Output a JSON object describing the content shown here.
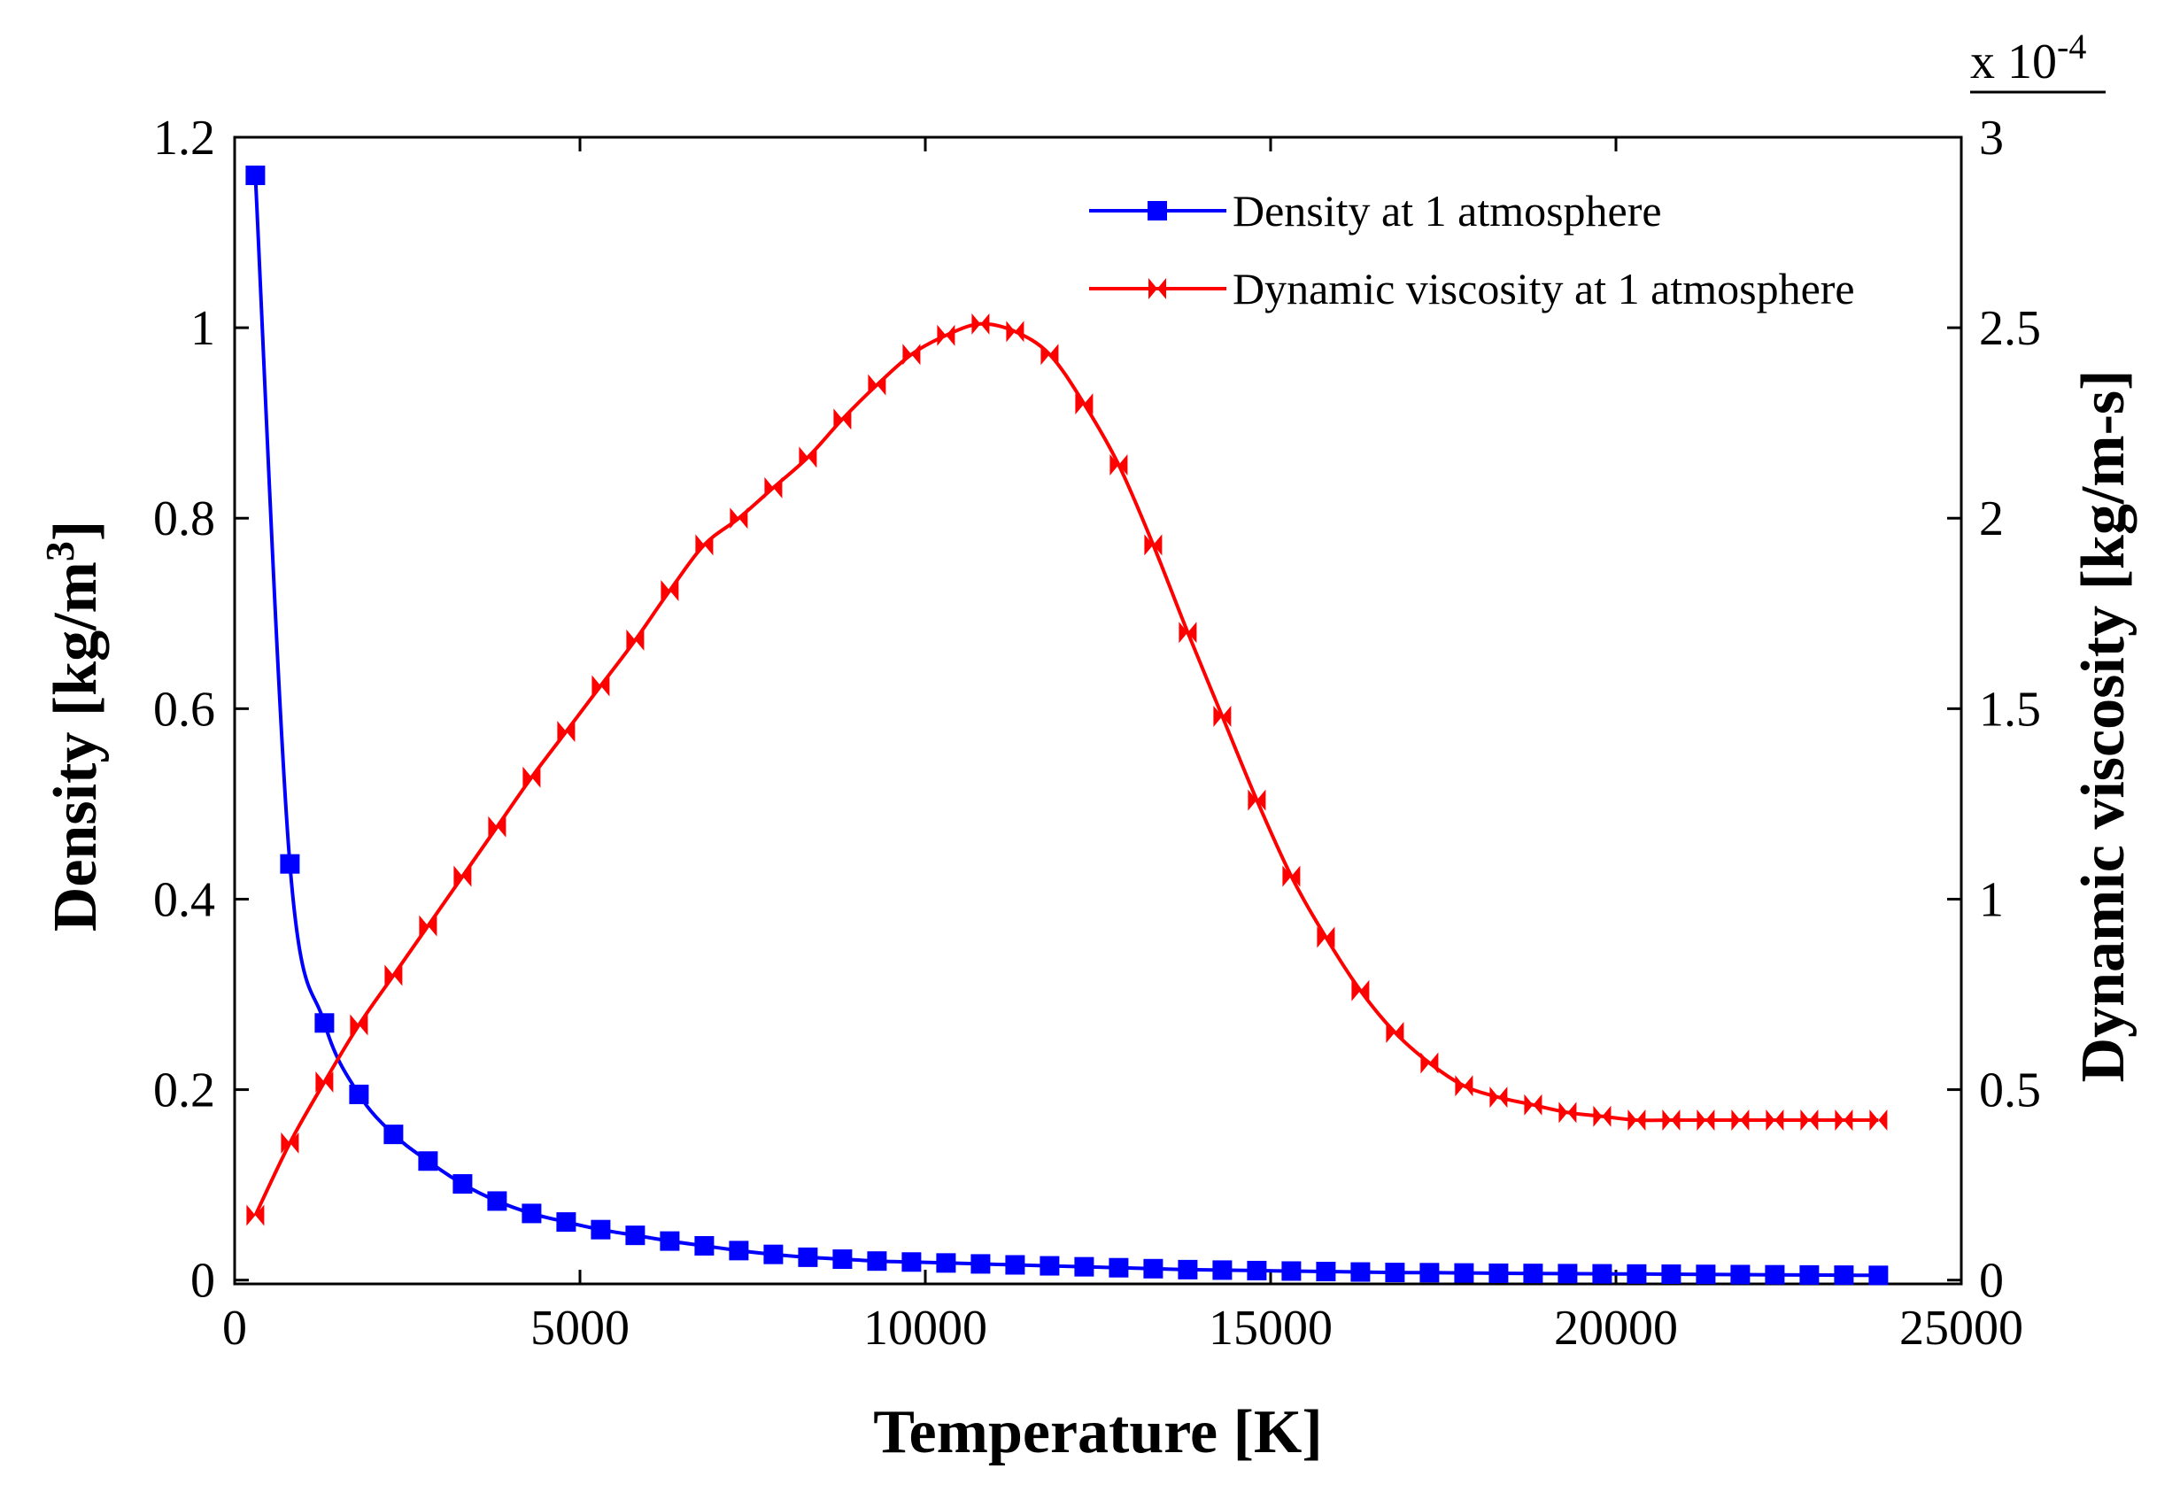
{
  "chart_data": {
    "type": "line",
    "xlabel": "Temperature  [K]",
    "ylabel": "Density [kg/m",
    "ylabel_sup": "3",
    "ylabel_close": "]",
    "y2label": "Dynamic viscosity [kg/m-s]",
    "y2_scale_prefix": "x 10",
    "y2_scale_exp": "-4",
    "xlim": [
      0,
      25000
    ],
    "ylim": [
      -0.004,
      1.2
    ],
    "y2lim": [
      -0.01,
      3
    ],
    "xticks": [
      0,
      5000,
      10000,
      15000,
      20000,
      25000
    ],
    "xtick_labels": [
      "0",
      "5000",
      "10000",
      "15000",
      "20000",
      "25000"
    ],
    "yticks": [
      0,
      0.2,
      0.4,
      0.6,
      0.8,
      1,
      1.2
    ],
    "ytick_labels": [
      "0",
      "0.2",
      "0.4",
      "0.6",
      "0.8",
      "1",
      "1.2"
    ],
    "y2ticks": [
      0,
      0.5,
      1,
      1.5,
      2,
      2.5,
      3
    ],
    "y2tick_labels": [
      "0",
      "0.5",
      "1",
      "1.5",
      "2",
      "2.5",
      "3"
    ],
    "legend_position": "top-right",
    "series": [
      {
        "name": "Density at 1 atmosphere",
        "axis": "left",
        "color": "#0000ff",
        "marker": "square",
        "x": [
          300,
          800,
          1300,
          1800,
          2300,
          2800,
          3300,
          3800,
          4300,
          4800,
          5300,
          5800,
          6300,
          6800,
          7300,
          7800,
          8300,
          8800,
          9300,
          9800,
          10300,
          10800,
          11300,
          11800,
          12300,
          12800,
          13300,
          13800,
          14300,
          14800,
          15300,
          15800,
          16300,
          16800,
          17300,
          17800,
          18300,
          18800,
          19300,
          19800,
          20300,
          20800,
          21300,
          21800,
          22300,
          22800,
          23300,
          23800
        ],
        "values": [
          1.16,
          0.437,
          0.27,
          0.195,
          0.153,
          0.125,
          0.101,
          0.083,
          0.07,
          0.061,
          0.053,
          0.047,
          0.041,
          0.036,
          0.031,
          0.027,
          0.024,
          0.022,
          0.02,
          0.019,
          0.018,
          0.017,
          0.016,
          0.015,
          0.014,
          0.013,
          0.012,
          0.011,
          0.0105,
          0.01,
          0.0095,
          0.009,
          0.0085,
          0.008,
          0.0078,
          0.0075,
          0.0072,
          0.007,
          0.0068,
          0.0066,
          0.0064,
          0.0062,
          0.006,
          0.0058,
          0.0056,
          0.0054,
          0.0052,
          0.005
        ]
      },
      {
        "name": "Dynamic viscosity at 1 atmosphere",
        "axis": "right",
        "color": "#ff0000",
        "marker": "bowtie",
        "x": [
          300,
          800,
          1300,
          1800,
          2300,
          2800,
          3300,
          3800,
          4300,
          4800,
          5300,
          5800,
          6300,
          6800,
          7300,
          7800,
          8300,
          8800,
          9300,
          9800,
          10300,
          10800,
          11300,
          11800,
          12300,
          12800,
          13300,
          13800,
          14300,
          14800,
          15300,
          15800,
          16300,
          16800,
          17300,
          17800,
          18300,
          18800,
          19300,
          19800,
          20300,
          20800,
          21300,
          21800,
          22300,
          22800,
          23300,
          23800
        ],
        "values": [
          0.17,
          0.36,
          0.52,
          0.67,
          0.8,
          0.93,
          1.06,
          1.19,
          1.32,
          1.44,
          1.56,
          1.68,
          1.81,
          1.93,
          2.0,
          2.08,
          2.16,
          2.26,
          2.35,
          2.43,
          2.48,
          2.51,
          2.49,
          2.43,
          2.3,
          2.14,
          1.93,
          1.7,
          1.48,
          1.26,
          1.06,
          0.9,
          0.76,
          0.65,
          0.57,
          0.51,
          0.48,
          0.46,
          0.44,
          0.43,
          0.42,
          0.42,
          0.42,
          0.42,
          0.42,
          0.42,
          0.42,
          0.42
        ]
      }
    ]
  }
}
